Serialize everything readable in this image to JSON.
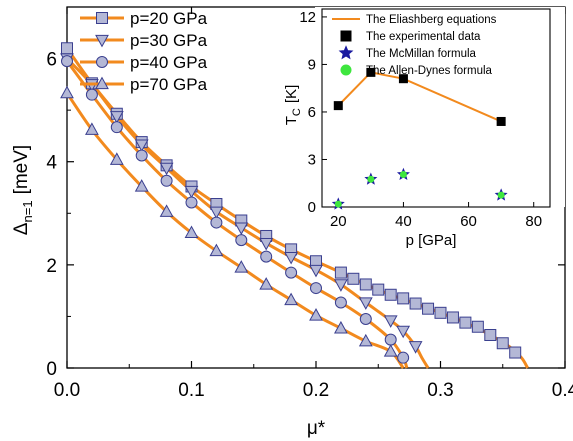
{
  "chart_data": [
    {
      "type": "line",
      "xlabel": "μ*",
      "ylabel_main": "Δ",
      "ylabel_sub": "n=1",
      "ylabel_unit": "[meV]",
      "xlim": [
        0.0,
        0.4
      ],
      "ylim": [
        0,
        7
      ],
      "x_ticks": [
        "0.0",
        "0.1",
        "0.2",
        "0.3",
        "0.4"
      ],
      "y_ticks": [
        "0",
        "2",
        "4",
        "6"
      ],
      "line_color": "#f28a1e",
      "marker_fill": "#b4b8d6",
      "marker_stroke": "#3a3f8f",
      "legend_position": "top-left",
      "series": [
        {
          "name": "p=20 GPa",
          "marker": "square",
          "curve": [
            [
              0.0,
              6.2
            ],
            [
              0.02,
              5.52
            ],
            [
              0.04,
              4.93
            ],
            [
              0.06,
              4.38
            ],
            [
              0.08,
              3.93
            ],
            [
              0.1,
              3.52
            ],
            [
              0.12,
              3.18
            ],
            [
              0.14,
              2.86
            ],
            [
              0.16,
              2.56
            ],
            [
              0.18,
              2.3
            ],
            [
              0.2,
              2.07
            ],
            [
              0.22,
              1.85
            ],
            [
              0.24,
              1.62
            ],
            [
              0.26,
              1.42
            ],
            [
              0.28,
              1.25
            ],
            [
              0.3,
              1.07
            ],
            [
              0.32,
              0.88
            ],
            [
              0.34,
              0.64
            ],
            [
              0.355,
              0.42
            ],
            [
              0.365,
              0.2
            ],
            [
              0.37,
              0.0
            ]
          ],
          "points": [
            [
              0.0,
              6.2
            ],
            [
              0.02,
              5.52
            ],
            [
              0.04,
              4.93
            ],
            [
              0.06,
              4.38
            ],
            [
              0.08,
              3.93
            ],
            [
              0.1,
              3.52
            ],
            [
              0.12,
              3.18
            ],
            [
              0.14,
              2.86
            ],
            [
              0.16,
              2.56
            ],
            [
              0.18,
              2.3
            ],
            [
              0.2,
              2.07
            ],
            [
              0.22,
              1.85
            ],
            [
              0.23,
              1.73
            ],
            [
              0.24,
              1.62
            ],
            [
              0.25,
              1.52
            ],
            [
              0.26,
              1.42
            ],
            [
              0.27,
              1.35
            ],
            [
              0.28,
              1.25
            ],
            [
              0.29,
              1.15
            ],
            [
              0.3,
              1.07
            ],
            [
              0.31,
              0.98
            ],
            [
              0.32,
              0.88
            ],
            [
              0.33,
              0.8
            ],
            [
              0.34,
              0.64
            ],
            [
              0.35,
              0.48
            ],
            [
              0.36,
              0.3
            ]
          ]
        },
        {
          "name": "p=30 GPa",
          "marker": "triangle-down",
          "curve": [
            [
              0.0,
              6.0
            ],
            [
              0.02,
              5.5
            ],
            [
              0.04,
              4.88
            ],
            [
              0.06,
              4.33
            ],
            [
              0.08,
              3.88
            ],
            [
              0.1,
              3.43
            ],
            [
              0.12,
              3.03
            ],
            [
              0.14,
              2.72
            ],
            [
              0.16,
              2.42
            ],
            [
              0.18,
              2.15
            ],
            [
              0.2,
              1.9
            ],
            [
              0.22,
              1.62
            ],
            [
              0.24,
              1.27
            ],
            [
              0.26,
              0.92
            ],
            [
              0.27,
              0.72
            ],
            [
              0.28,
              0.42
            ],
            [
              0.285,
              0.2
            ],
            [
              0.29,
              0.0
            ]
          ],
          "points": [
            [
              0.0,
              6.0
            ],
            [
              0.02,
              5.5
            ],
            [
              0.04,
              4.88
            ],
            [
              0.06,
              4.33
            ],
            [
              0.08,
              3.88
            ],
            [
              0.1,
              3.43
            ],
            [
              0.12,
              3.03
            ],
            [
              0.14,
              2.72
            ],
            [
              0.16,
              2.42
            ],
            [
              0.18,
              2.15
            ],
            [
              0.2,
              1.9
            ],
            [
              0.22,
              1.62
            ],
            [
              0.24,
              1.27
            ],
            [
              0.26,
              0.92
            ],
            [
              0.27,
              0.72
            ],
            [
              0.28,
              0.42
            ]
          ]
        },
        {
          "name": "p=40 GPa",
          "marker": "circle",
          "curve": [
            [
              0.0,
              5.95
            ],
            [
              0.02,
              5.3
            ],
            [
              0.04,
              4.67
            ],
            [
              0.06,
              4.12
            ],
            [
              0.08,
              3.63
            ],
            [
              0.1,
              3.21
            ],
            [
              0.12,
              2.82
            ],
            [
              0.14,
              2.48
            ],
            [
              0.16,
              2.16
            ],
            [
              0.18,
              1.85
            ],
            [
              0.2,
              1.55
            ],
            [
              0.22,
              1.27
            ],
            [
              0.24,
              0.95
            ],
            [
              0.26,
              0.55
            ],
            [
              0.27,
              0.2
            ],
            [
              0.273,
              0.0
            ]
          ],
          "points": [
            [
              0.0,
              5.95
            ],
            [
              0.02,
              5.3
            ],
            [
              0.04,
              4.67
            ],
            [
              0.06,
              4.12
            ],
            [
              0.08,
              3.63
            ],
            [
              0.1,
              3.21
            ],
            [
              0.12,
              2.82
            ],
            [
              0.14,
              2.48
            ],
            [
              0.16,
              2.16
            ],
            [
              0.18,
              1.85
            ],
            [
              0.2,
              1.55
            ],
            [
              0.22,
              1.27
            ],
            [
              0.24,
              0.95
            ],
            [
              0.26,
              0.55
            ],
            [
              0.27,
              0.2
            ]
          ]
        },
        {
          "name": "p=70 GPa",
          "marker": "triangle-up",
          "curve": [
            [
              0.0,
              5.33
            ],
            [
              0.02,
              4.62
            ],
            [
              0.04,
              4.04
            ],
            [
              0.06,
              3.52
            ],
            [
              0.08,
              3.03
            ],
            [
              0.1,
              2.62
            ],
            [
              0.12,
              2.27
            ],
            [
              0.14,
              1.95
            ],
            [
              0.16,
              1.62
            ],
            [
              0.18,
              1.32
            ],
            [
              0.2,
              1.02
            ],
            [
              0.22,
              0.77
            ],
            [
              0.24,
              0.52
            ],
            [
              0.26,
              0.32
            ],
            [
              0.27,
              0.0
            ]
          ],
          "points": [
            [
              0.0,
              5.33
            ],
            [
              0.02,
              4.62
            ],
            [
              0.04,
              4.04
            ],
            [
              0.06,
              3.52
            ],
            [
              0.08,
              3.03
            ],
            [
              0.1,
              2.62
            ],
            [
              0.12,
              2.27
            ],
            [
              0.14,
              1.95
            ],
            [
              0.16,
              1.62
            ],
            [
              0.18,
              1.32
            ],
            [
              0.2,
              1.02
            ],
            [
              0.22,
              0.77
            ],
            [
              0.24,
              0.52
            ],
            [
              0.26,
              0.32
            ]
          ]
        }
      ]
    },
    {
      "type": "scatter",
      "xlabel": "p [GPa]",
      "ylabel_main": "T",
      "ylabel_sub": "C",
      "ylabel_unit": "[K]",
      "xlim": [
        15,
        85
      ],
      "ylim": [
        0,
        12.5
      ],
      "x_ticks": [
        "20",
        "40",
        "60",
        "80"
      ],
      "y_ticks": [
        "0",
        "3",
        "6",
        "9",
        "12"
      ],
      "legend_position": "top",
      "series": [
        {
          "name": "The Eliashberg equations",
          "marker": "line",
          "color": "#f28a1e",
          "points": [
            [
              20,
              6.4
            ],
            [
              30,
              8.5
            ],
            [
              40,
              8.1
            ],
            [
              70,
              5.4
            ]
          ]
        },
        {
          "name": "The experimental data",
          "marker": "square",
          "color": "#000000",
          "points": [
            [
              20,
              6.4
            ],
            [
              30,
              8.5
            ],
            [
              40,
              8.1
            ],
            [
              70,
              5.4
            ]
          ]
        },
        {
          "name": "The McMillan formula",
          "marker": "star",
          "color": "#1a1aa0",
          "points": [
            [
              20,
              0.18
            ],
            [
              30,
              1.75
            ],
            [
              40,
              2.05
            ],
            [
              70,
              0.75
            ]
          ]
        },
        {
          "name": "The Allen-Dynes formula",
          "marker": "circle",
          "color": "#3ee63e",
          "points": [
            [
              20,
              0.18
            ],
            [
              30,
              1.75
            ],
            [
              40,
              2.05
            ],
            [
              70,
              0.75
            ]
          ]
        }
      ]
    }
  ]
}
